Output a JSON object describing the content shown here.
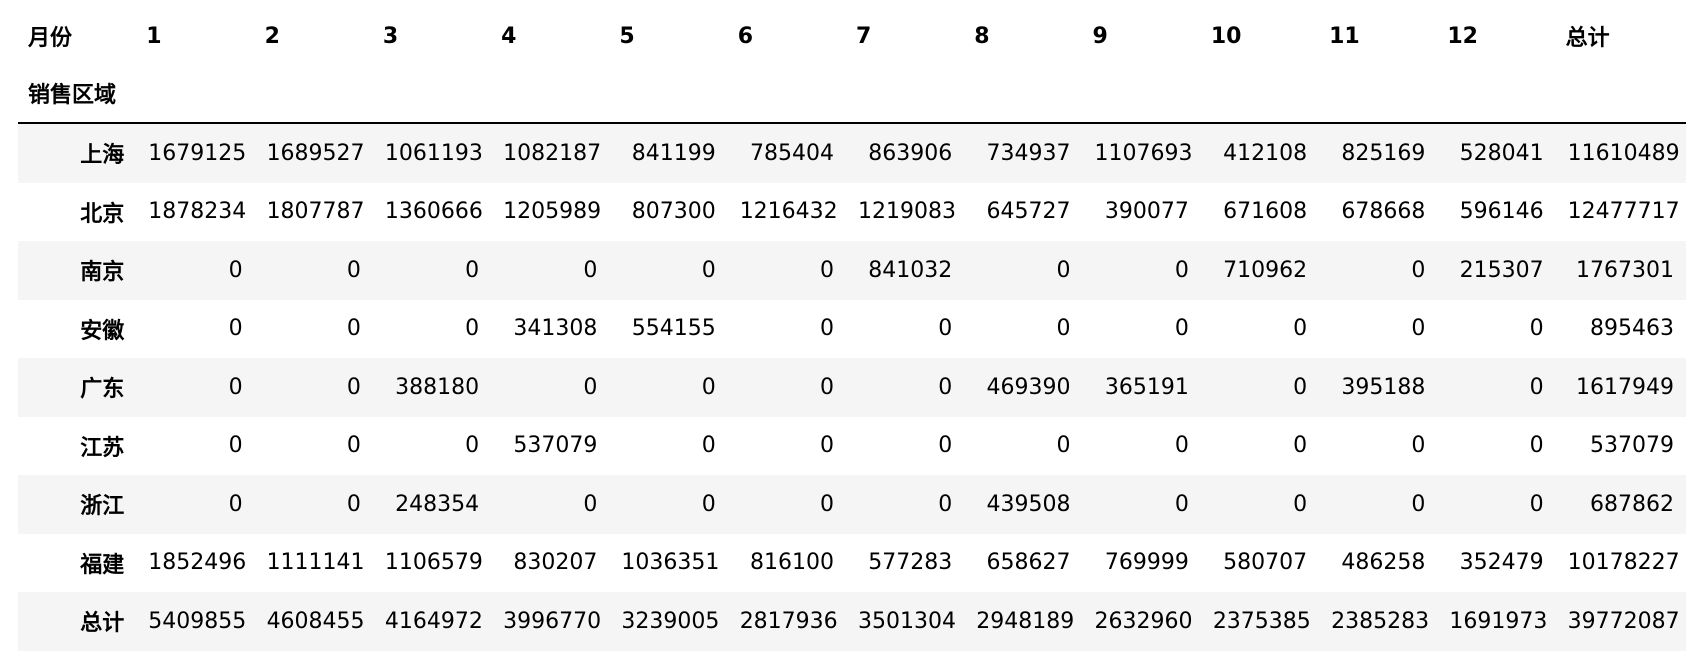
{
  "table": {
    "columns_name": "月份",
    "index_name": "销售区域",
    "columns": [
      "1",
      "2",
      "3",
      "4",
      "5",
      "6",
      "7",
      "8",
      "9",
      "10",
      "11",
      "12",
      "总计"
    ],
    "rows": [
      {
        "label": "上海",
        "values": [
          "1679125",
          "1689527",
          "1061193",
          "1082187",
          "841199",
          "785404",
          "863906",
          "734937",
          "1107693",
          "412108",
          "825169",
          "528041",
          "11610489"
        ]
      },
      {
        "label": "北京",
        "values": [
          "1878234",
          "1807787",
          "1360666",
          "1205989",
          "807300",
          "1216432",
          "1219083",
          "645727",
          "390077",
          "671608",
          "678668",
          "596146",
          "12477717"
        ]
      },
      {
        "label": "南京",
        "values": [
          "0",
          "0",
          "0",
          "0",
          "0",
          "0",
          "841032",
          "0",
          "0",
          "710962",
          "0",
          "215307",
          "1767301"
        ]
      },
      {
        "label": "安徽",
        "values": [
          "0",
          "0",
          "0",
          "341308",
          "554155",
          "0",
          "0",
          "0",
          "0",
          "0",
          "0",
          "0",
          "895463"
        ]
      },
      {
        "label": "广东",
        "values": [
          "0",
          "0",
          "388180",
          "0",
          "0",
          "0",
          "0",
          "469390",
          "365191",
          "0",
          "395188",
          "0",
          "1617949"
        ]
      },
      {
        "label": "江苏",
        "values": [
          "0",
          "0",
          "0",
          "537079",
          "0",
          "0",
          "0",
          "0",
          "0",
          "0",
          "0",
          "0",
          "537079"
        ]
      },
      {
        "label": "浙江",
        "values": [
          "0",
          "0",
          "248354",
          "0",
          "0",
          "0",
          "0",
          "439508",
          "0",
          "0",
          "0",
          "0",
          "687862"
        ]
      },
      {
        "label": "福建",
        "values": [
          "1852496",
          "1111141",
          "1106579",
          "830207",
          "1036351",
          "816100",
          "577283",
          "658627",
          "769999",
          "580707",
          "486258",
          "352479",
          "10178227"
        ]
      },
      {
        "label": "总计",
        "values": [
          "5409855",
          "4608455",
          "4164972",
          "3996770",
          "3239005",
          "2817936",
          "3501304",
          "2948189",
          "2632960",
          "2375385",
          "2385283",
          "1691973",
          "39772087"
        ]
      }
    ]
  }
}
